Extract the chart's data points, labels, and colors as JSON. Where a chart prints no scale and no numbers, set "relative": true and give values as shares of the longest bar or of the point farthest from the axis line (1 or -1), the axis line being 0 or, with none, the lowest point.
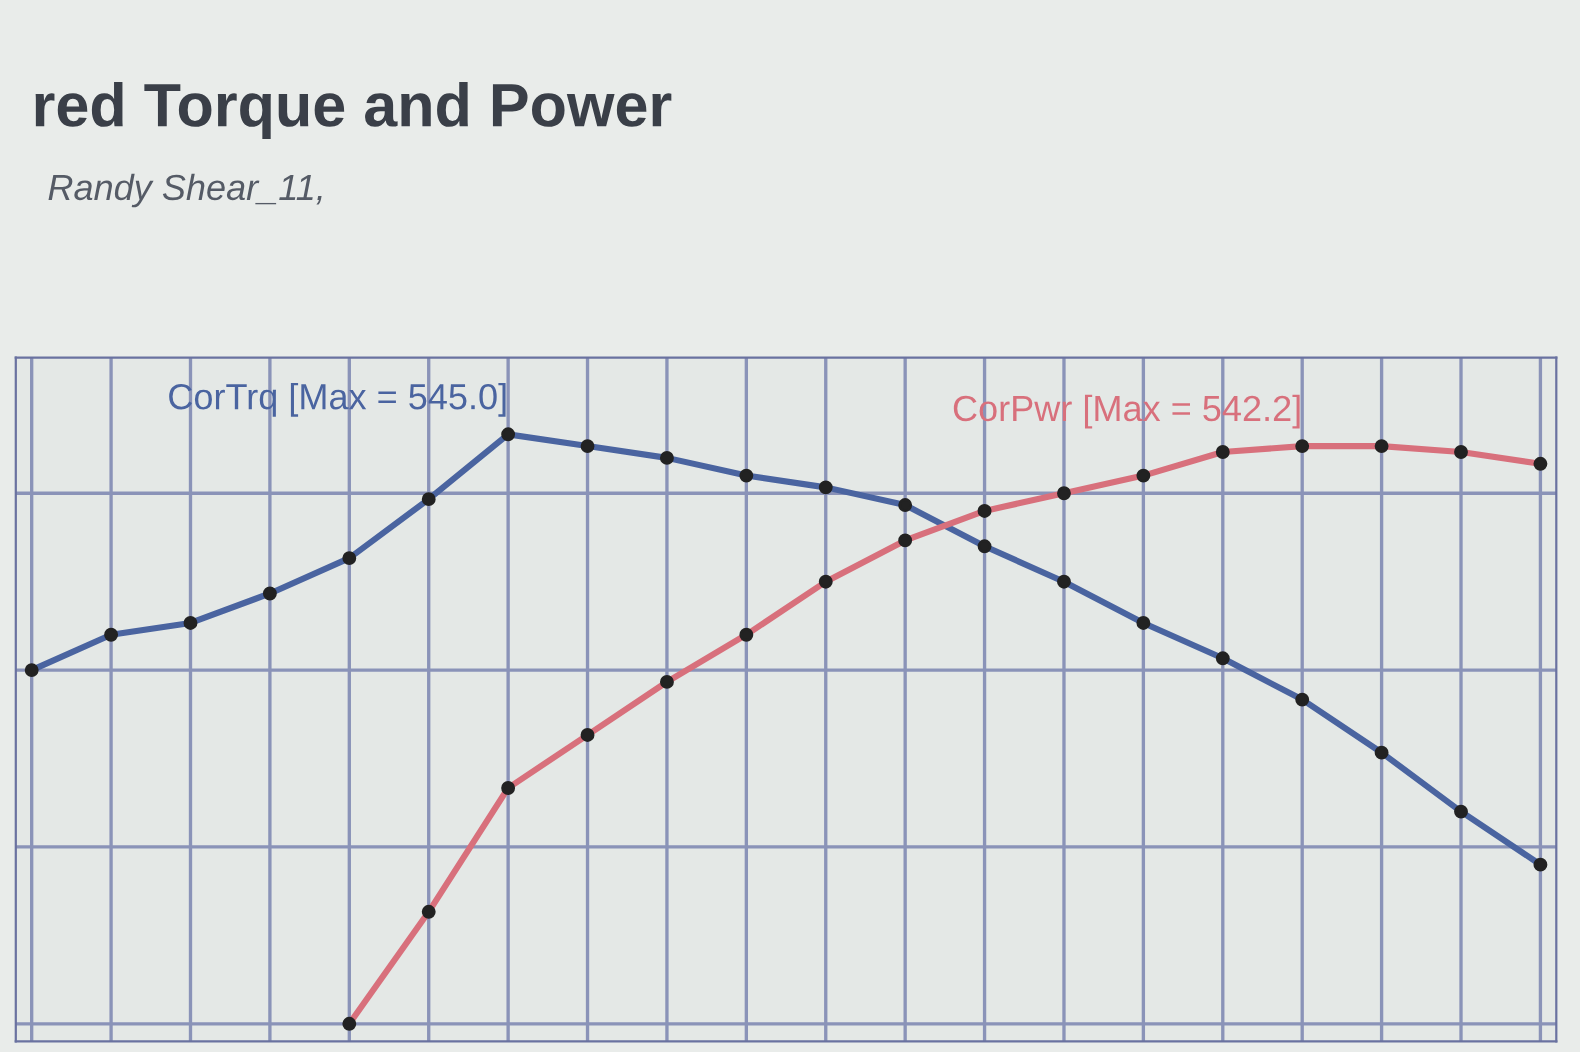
{
  "chart_data": {
    "type": "line",
    "title": "red Torque and Power",
    "subtitle": "Randy Shear_11,",
    "relative": true,
    "grid": true,
    "legend": false,
    "marker": "circle",
    "line_style": "solid",
    "categories": [
      null,
      null,
      null,
      null,
      null,
      null,
      null,
      null,
      null,
      null,
      null,
      null,
      null,
      null,
      null,
      null,
      null,
      null,
      null,
      null
    ],
    "series": [
      {
        "name": "CorTrq [Max = 545.0]",
        "color": "#4a64a0",
        "values": [
          0.6,
          0.66,
          0.68,
          0.73,
          0.79,
          0.89,
          1.0,
          0.98,
          0.96,
          0.93,
          0.91,
          0.88,
          0.81,
          0.75,
          0.68,
          0.62,
          0.55,
          0.46,
          0.36,
          0.27
        ]
      },
      {
        "name": "CorPwr [Max = 542.2]",
        "color": "#d8707c",
        "values": [
          null,
          null,
          null,
          null,
          0.0,
          0.19,
          0.4,
          0.49,
          0.58,
          0.66,
          0.75,
          0.82,
          0.87,
          0.9,
          0.93,
          0.97,
          0.98,
          0.98,
          0.97,
          0.95
        ]
      }
    ]
  }
}
